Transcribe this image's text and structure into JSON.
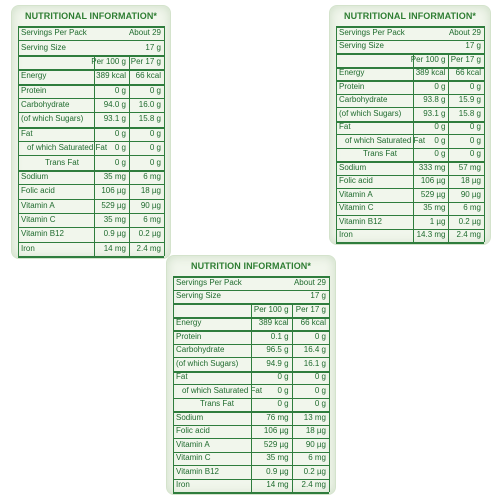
{
  "panels": [
    {
      "title": "NUTRITIONAL INFORMATION*",
      "servings_per_pack_label": "Servings Per Pack",
      "servings_per_pack_value": "About 29",
      "serving_size_label": "Serving Size",
      "serving_size_value": "17 g",
      "col_per100": "Per 100 g",
      "col_perserve": "Per 17 g",
      "rows": [
        {
          "label": "Energy",
          "v100": "389 kcal",
          "vserve": "66 kcal",
          "indent": 0
        },
        {
          "label": "Protein",
          "v100": "0 g",
          "vserve": "0 g",
          "indent": 0
        },
        {
          "label": "Carbohydrate",
          "v100": "94.0 g",
          "vserve": "16.0 g",
          "indent": 0
        },
        {
          "label": "(of which Sugars)",
          "v100": "93.1 g",
          "vserve": "15.8 g",
          "indent": 0
        },
        {
          "label": "Fat",
          "v100": "0 g",
          "vserve": "0 g",
          "indent": 0
        },
        {
          "label": "of which Saturated Fat",
          "v100": "0 g",
          "vserve": "0 g",
          "indent": 1
        },
        {
          "label": "Trans Fat",
          "v100": "0 g",
          "vserve": "0 g",
          "indent": 2
        },
        {
          "label": "Sodium",
          "v100": "35 mg",
          "vserve": "6 mg",
          "indent": 0
        },
        {
          "label": "Folic acid",
          "v100": "106 µg",
          "vserve": "18 µg",
          "indent": 0
        },
        {
          "label": "Vitamin A",
          "v100": "529 µg",
          "vserve": "90 µg",
          "indent": 0
        },
        {
          "label": "Vitamin C",
          "v100": "35 mg",
          "vserve": "6 mg",
          "indent": 0
        },
        {
          "label": "Vitamin B12",
          "v100": "0.9 µg",
          "vserve": "0.2 µg",
          "indent": 0
        },
        {
          "label": "Iron",
          "v100": "14 mg",
          "vserve": "2.4 mg",
          "indent": 0
        }
      ]
    },
    {
      "title": "NUTRITIONAL INFORMATION*",
      "servings_per_pack_label": "Servings Per Pack",
      "servings_per_pack_value": "About 29",
      "serving_size_label": "Serving Size",
      "serving_size_value": "17 g",
      "col_per100": "Per 100 g",
      "col_perserve": "Per 17 g",
      "rows": [
        {
          "label": "Energy",
          "v100": "389 kcal",
          "vserve": "66 kcal",
          "indent": 0
        },
        {
          "label": "Protein",
          "v100": "0 g",
          "vserve": "0 g",
          "indent": 0
        },
        {
          "label": "Carbohydrate",
          "v100": "93.8 g",
          "vserve": "15.9 g",
          "indent": 0
        },
        {
          "label": "(of which Sugars)",
          "v100": "93.1 g",
          "vserve": "15.8 g",
          "indent": 0
        },
        {
          "label": "Fat",
          "v100": "0 g",
          "vserve": "0 g",
          "indent": 0
        },
        {
          "label": "of which Saturated Fat",
          "v100": "0 g",
          "vserve": "0 g",
          "indent": 1
        },
        {
          "label": "Trans Fat",
          "v100": "0 g",
          "vserve": "0 g",
          "indent": 2
        },
        {
          "label": "Sodium",
          "v100": "333 mg",
          "vserve": "57 mg",
          "indent": 0
        },
        {
          "label": "Folic acid",
          "v100": "106 µg",
          "vserve": "18 µg",
          "indent": 0
        },
        {
          "label": "Vitamin A",
          "v100": "529 µg",
          "vserve": "90 µg",
          "indent": 0
        },
        {
          "label": "Vitamin C",
          "v100": "35 mg",
          "vserve": "6 mg",
          "indent": 0
        },
        {
          "label": "Vitamin B12",
          "v100": "1 µg",
          "vserve": "0.2 µg",
          "indent": 0
        },
        {
          "label": "Iron",
          "v100": "14.3 mg",
          "vserve": "2.4 mg",
          "indent": 0
        }
      ]
    },
    {
      "title": "NUTRITION INFORMATION*",
      "servings_per_pack_label": "Servings Per Pack",
      "servings_per_pack_value": "About 29",
      "serving_size_label": "Serving Size",
      "serving_size_value": "17 g",
      "col_per100": "Per 100 g",
      "col_perserve": "Per 17 g",
      "rows": [
        {
          "label": "Energy",
          "v100": "389 kcal",
          "vserve": "66 kcal",
          "indent": 0
        },
        {
          "label": "Protein",
          "v100": "0.1 g",
          "vserve": "0 g",
          "indent": 0
        },
        {
          "label": "Carbohydrate",
          "v100": "96.5 g",
          "vserve": "16.4 g",
          "indent": 0
        },
        {
          "label": "(of which Sugars)",
          "v100": "94.9 g",
          "vserve": "16.1 g",
          "indent": 0
        },
        {
          "label": "Fat",
          "v100": "0 g",
          "vserve": "0 g",
          "indent": 0
        },
        {
          "label": "of which Saturated Fat",
          "v100": "0 g",
          "vserve": "0 g",
          "indent": 1
        },
        {
          "label": "Trans Fat",
          "v100": "0 g",
          "vserve": "0 g",
          "indent": 2
        },
        {
          "label": "Sodium",
          "v100": "76 mg",
          "vserve": "13 mg",
          "indent": 0
        },
        {
          "label": "Folic acid",
          "v100": "106 µg",
          "vserve": "18 µg",
          "indent": 0
        },
        {
          "label": "Vitamin A",
          "v100": "529 µg",
          "vserve": "90 µg",
          "indent": 0
        },
        {
          "label": "Vitamin C",
          "v100": "35 mg",
          "vserve": "6 mg",
          "indent": 0
        },
        {
          "label": "Vitamin B12",
          "v100": "0.9 µg",
          "vserve": "0.2 µg",
          "indent": 0
        },
        {
          "label": "Iron",
          "v100": "14 mg",
          "vserve": "2.4 mg",
          "indent": 0
        }
      ]
    }
  ],
  "colors": {
    "text": "#1f6b2e",
    "rule": "#2f7d3d",
    "panel_bg": "#f1f6ec"
  }
}
